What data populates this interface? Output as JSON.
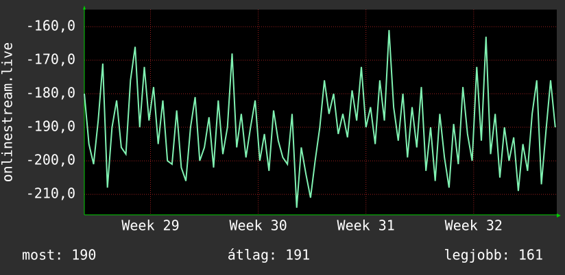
{
  "chart_data": {
    "type": "line",
    "y_label": "onlinestream.live",
    "xlim": [
      0,
      30.7
    ],
    "ylim": [
      -216.1,
      -154.9
    ],
    "xticks": [
      {
        "value": 4.3,
        "label": "Week 29"
      },
      {
        "value": 11.3,
        "label": "Week 30"
      },
      {
        "value": 18.3,
        "label": "Week 31"
      },
      {
        "value": 25.3,
        "label": "Week 32"
      }
    ],
    "yticks": [
      {
        "value": -160,
        "label": "-160,0"
      },
      {
        "value": -170,
        "label": "-170,0"
      },
      {
        "value": -180,
        "label": "-180,0"
      },
      {
        "value": -190,
        "label": "-190,0"
      },
      {
        "value": -200,
        "label": "-200,0"
      },
      {
        "value": -210,
        "label": "-210,0"
      }
    ],
    "grid": true,
    "series": [
      {
        "color": "#80f2b2",
        "x": [
          0.0,
          0.3,
          0.6,
          0.9,
          1.2,
          1.5,
          1.8,
          2.1,
          2.4,
          2.7,
          3.0,
          3.3,
          3.6,
          3.9,
          4.2,
          4.5,
          4.8,
          5.1,
          5.4,
          5.7,
          6.0,
          6.3,
          6.6,
          6.9,
          7.2,
          7.5,
          7.8,
          8.1,
          8.4,
          8.7,
          9.0,
          9.3,
          9.6,
          9.9,
          10.2,
          10.5,
          10.8,
          11.1,
          11.4,
          11.7,
          12.0,
          12.3,
          12.6,
          12.9,
          13.2,
          13.5,
          13.8,
          14.1,
          14.4,
          14.7,
          15.0,
          15.3,
          15.6,
          15.9,
          16.2,
          16.5,
          16.8,
          17.1,
          17.4,
          17.7,
          18.0,
          18.3,
          18.6,
          18.9,
          19.2,
          19.5,
          19.8,
          20.1,
          20.4,
          20.7,
          21.0,
          21.3,
          21.6,
          21.9,
          22.2,
          22.5,
          22.8,
          23.1,
          23.4,
          23.7,
          24.0,
          24.3,
          24.6,
          24.9,
          25.2,
          25.5,
          25.8,
          26.1,
          26.4,
          26.7,
          27.0,
          27.3,
          27.6,
          27.9,
          28.2,
          28.5,
          28.8,
          29.1,
          29.4,
          29.7,
          30.0,
          30.3,
          30.6
        ],
        "values": [
          -180,
          -195,
          -201,
          -188,
          -171,
          -208,
          -190,
          -182,
          -196,
          -198,
          -176,
          -166,
          -190,
          -172,
          -188,
          -178,
          -195,
          -182,
          -200,
          -201,
          -185,
          -202,
          -206,
          -190,
          -181,
          -200,
          -196,
          -187,
          -202,
          -182,
          -198,
          -190,
          -168,
          -196,
          -186,
          -199,
          -190,
          -182,
          -200,
          -192,
          -203,
          -185,
          -194,
          -199,
          -201,
          -186,
          -214,
          -196,
          -204,
          -211,
          -200,
          -190,
          -176,
          -186,
          -180,
          -192,
          -186,
          -193,
          -179,
          -188,
          -172,
          -190,
          -184,
          -195,
          -176,
          -188,
          -161,
          -184,
          -194,
          -180,
          -199,
          -184,
          -196,
          -178,
          -203,
          -190,
          -206,
          -186,
          -199,
          -208,
          -189,
          -201,
          -178,
          -192,
          -200,
          -172,
          -194,
          -163,
          -198,
          -186,
          -205,
          -190,
          -200,
          -193,
          -209,
          -195,
          -203,
          -186,
          -176,
          -207,
          -191,
          -176,
          -190
        ]
      }
    ],
    "footer": [
      "most: 190",
      "átlag: 191",
      "legjobb: 161"
    ]
  }
}
